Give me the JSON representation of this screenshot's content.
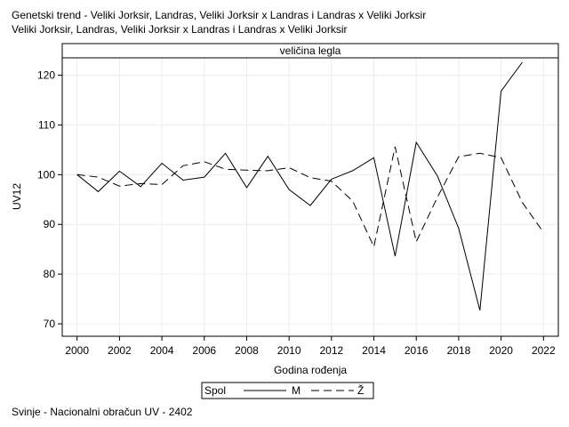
{
  "title_line1": "Genetski trend - Veliki Jorksir, Landras, Veliki Jorksir x Landras i Landras x Veliki Jorksir",
  "title_line2": "Veliki Jorksir, Landras, Veliki Jorksir x Landras i Landras x Veliki Jorksir",
  "footnote": "Svinje - Nacionalni obračun UV - 2402",
  "chart_data": {
    "type": "line",
    "panel_label": "veličina legla",
    "xlabel": "Godina rođenja",
    "ylabel": "UV12",
    "xlim": [
      1999.3,
      2022.7
    ],
    "ylim": [
      67.5,
      123.5
    ],
    "x_ticks": [
      2000,
      2002,
      2004,
      2006,
      2008,
      2010,
      2012,
      2014,
      2016,
      2018,
      2020,
      2022
    ],
    "y_ticks": [
      70,
      80,
      90,
      100,
      110,
      120
    ],
    "grid": true,
    "legend": {
      "title": "Spol",
      "placement": "bottom-center"
    },
    "series": [
      {
        "name": "M",
        "style": "solid",
        "x": [
          2000,
          2001,
          2002,
          2003,
          2004,
          2005,
          2006,
          2007,
          2008,
          2009,
          2010,
          2011,
          2012,
          2013,
          2014,
          2015,
          2016,
          2017,
          2018,
          2019,
          2020,
          2021
        ],
        "y": [
          100,
          96.6,
          100.7,
          97.6,
          102.3,
          98.9,
          99.5,
          104.3,
          97.4,
          103.7,
          97.0,
          93.8,
          99.1,
          100.8,
          103.4,
          83.6,
          106.5,
          99.7,
          89.2,
          72.7,
          116.8,
          122.6
        ]
      },
      {
        "name": "Ž",
        "style": "dashed",
        "x": [
          2000,
          2001,
          2002,
          2003,
          2004,
          2005,
          2006,
          2007,
          2008,
          2009,
          2010,
          2011,
          2012,
          2013,
          2014,
          2015,
          2016,
          2017,
          2018,
          2019,
          2020,
          2021,
          2022
        ],
        "y": [
          100,
          99.5,
          97.7,
          98.2,
          98.0,
          101.8,
          102.6,
          101.1,
          100.9,
          100.8,
          101.4,
          99.4,
          98.7,
          94.7,
          85.5,
          105.6,
          86.5,
          95.5,
          103.6,
          104.3,
          103.4,
          94.4,
          88.4
        ]
      }
    ]
  }
}
